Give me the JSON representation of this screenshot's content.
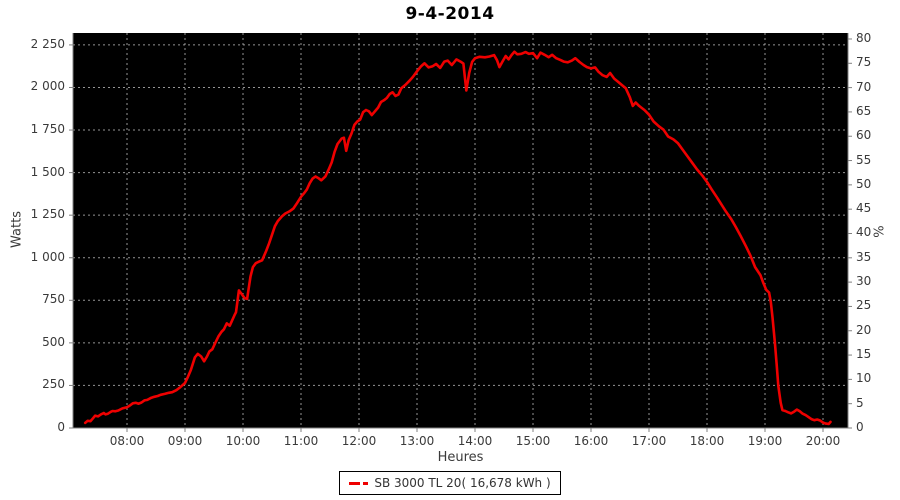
{
  "title": "9-4-2014",
  "legend": {
    "label": "SB 3000 TL 20( 16,678 kWh )",
    "color": "#ee0000"
  },
  "chart_data": {
    "type": "line",
    "title": "9-4-2014",
    "xlabel": "Heures",
    "ylabel_left": "Watts",
    "ylabel_right": "%",
    "grid": true,
    "legend_position": "bottom",
    "plot_background": "#000000",
    "grid_color": "#b0b0b0",
    "axis_color": "#808080",
    "text_color": "#3a3a3a",
    "x_range_hours": [
      7.069,
      20.431
    ],
    "y_range_watts": [
      0,
      2320
    ],
    "right_axis_top_pct": 81.23,
    "x_ticks": [
      {
        "hour": 8,
        "label": "08:00"
      },
      {
        "hour": 9,
        "label": "09:00"
      },
      {
        "hour": 10,
        "label": "10:00"
      },
      {
        "hour": 11,
        "label": "11:00"
      },
      {
        "hour": 12,
        "label": "12:00"
      },
      {
        "hour": 13,
        "label": "13:00"
      },
      {
        "hour": 14,
        "label": "14:00"
      },
      {
        "hour": 15,
        "label": "15:00"
      },
      {
        "hour": 16,
        "label": "16:00"
      },
      {
        "hour": 17,
        "label": "17:00"
      },
      {
        "hour": 18,
        "label": "18:00"
      },
      {
        "hour": 19,
        "label": "19:00"
      },
      {
        "hour": 20,
        "label": "20:00"
      }
    ],
    "y_ticks_left": [
      {
        "value": 0,
        "label": "0"
      },
      {
        "value": 250,
        "label": "250"
      },
      {
        "value": 500,
        "label": "500"
      },
      {
        "value": 750,
        "label": "750"
      },
      {
        "value": 1000,
        "label": "1 000"
      },
      {
        "value": 1250,
        "label": "1 250"
      },
      {
        "value": 1500,
        "label": "1 500"
      },
      {
        "value": 1750,
        "label": "1 750"
      },
      {
        "value": 2000,
        "label": "2 000"
      },
      {
        "value": 2250,
        "label": "2 250"
      }
    ],
    "y_ticks_right": [
      {
        "value": 0,
        "label": "0"
      },
      {
        "value": 5,
        "label": "5"
      },
      {
        "value": 10,
        "label": "10"
      },
      {
        "value": 15,
        "label": "15"
      },
      {
        "value": 20,
        "label": "20"
      },
      {
        "value": 25,
        "label": "25"
      },
      {
        "value": 30,
        "label": "30"
      },
      {
        "value": 35,
        "label": "35"
      },
      {
        "value": 40,
        "label": "40"
      },
      {
        "value": 45,
        "label": "45"
      },
      {
        "value": 50,
        "label": "50"
      },
      {
        "value": 55,
        "label": "55"
      },
      {
        "value": 60,
        "label": "60"
      },
      {
        "value": 65,
        "label": "65"
      },
      {
        "value": 70,
        "label": "70"
      },
      {
        "value": 75,
        "label": "75"
      },
      {
        "value": 80,
        "label": "80"
      }
    ],
    "series": [
      {
        "name": "SB 3000 TL 20( 16,678 kWh )",
        "color": "#ee0000",
        "points": [
          [
            7.28,
            30
          ],
          [
            7.32,
            42
          ],
          [
            7.37,
            40
          ],
          [
            7.42,
            60
          ],
          [
            7.45,
            72
          ],
          [
            7.5,
            68
          ],
          [
            7.55,
            80
          ],
          [
            7.6,
            88
          ],
          [
            7.63,
            80
          ],
          [
            7.67,
            84
          ],
          [
            7.72,
            95
          ],
          [
            7.75,
            100
          ],
          [
            7.8,
            98
          ],
          [
            7.85,
            103
          ],
          [
            7.92,
            115
          ],
          [
            8.0,
            122
          ],
          [
            8.05,
            132
          ],
          [
            8.1,
            145
          ],
          [
            8.15,
            148
          ],
          [
            8.2,
            143
          ],
          [
            8.25,
            150
          ],
          [
            8.3,
            162
          ],
          [
            8.35,
            165
          ],
          [
            8.42,
            178
          ],
          [
            8.47,
            183
          ],
          [
            8.53,
            188
          ],
          [
            8.58,
            195
          ],
          [
            8.65,
            200
          ],
          [
            8.72,
            207
          ],
          [
            8.78,
            210
          ],
          [
            8.85,
            222
          ],
          [
            8.92,
            240
          ],
          [
            9.0,
            265
          ],
          [
            9.05,
            300
          ],
          [
            9.1,
            340
          ],
          [
            9.17,
            415
          ],
          [
            9.22,
            435
          ],
          [
            9.28,
            420
          ],
          [
            9.33,
            392
          ],
          [
            9.38,
            420
          ],
          [
            9.42,
            450
          ],
          [
            9.47,
            462
          ],
          [
            9.53,
            505
          ],
          [
            9.58,
            540
          ],
          [
            9.63,
            565
          ],
          [
            9.67,
            580
          ],
          [
            9.72,
            615
          ],
          [
            9.77,
            600
          ],
          [
            9.8,
            622
          ],
          [
            9.85,
            660
          ],
          [
            9.88,
            680
          ],
          [
            9.93,
            808
          ],
          [
            9.97,
            790
          ],
          [
            10.03,
            762
          ],
          [
            10.07,
            758
          ],
          [
            10.13,
            890
          ],
          [
            10.17,
            945
          ],
          [
            10.22,
            968
          ],
          [
            10.28,
            978
          ],
          [
            10.33,
            985
          ],
          [
            10.4,
            1040
          ],
          [
            10.45,
            1085
          ],
          [
            10.5,
            1135
          ],
          [
            10.55,
            1185
          ],
          [
            10.6,
            1215
          ],
          [
            10.67,
            1243
          ],
          [
            10.73,
            1260
          ],
          [
            10.8,
            1272
          ],
          [
            10.87,
            1290
          ],
          [
            10.93,
            1320
          ],
          [
            11.0,
            1358
          ],
          [
            11.05,
            1378
          ],
          [
            11.1,
            1400
          ],
          [
            11.15,
            1438
          ],
          [
            11.2,
            1465
          ],
          [
            11.25,
            1477
          ],
          [
            11.3,
            1468
          ],
          [
            11.35,
            1455
          ],
          [
            11.42,
            1478
          ],
          [
            11.48,
            1520
          ],
          [
            11.53,
            1560
          ],
          [
            11.58,
            1622
          ],
          [
            11.63,
            1668
          ],
          [
            11.7,
            1700
          ],
          [
            11.74,
            1705
          ],
          [
            11.78,
            1628
          ],
          [
            11.82,
            1690
          ],
          [
            11.87,
            1730
          ],
          [
            11.92,
            1780
          ],
          [
            11.97,
            1800
          ],
          [
            12.02,
            1812
          ],
          [
            12.07,
            1855
          ],
          [
            12.12,
            1868
          ],
          [
            12.17,
            1860
          ],
          [
            12.22,
            1838
          ],
          [
            12.28,
            1862
          ],
          [
            12.33,
            1882
          ],
          [
            12.38,
            1915
          ],
          [
            12.43,
            1925
          ],
          [
            12.48,
            1938
          ],
          [
            12.53,
            1962
          ],
          [
            12.58,
            1972
          ],
          [
            12.63,
            1950
          ],
          [
            12.68,
            1958
          ],
          [
            12.73,
            1995
          ],
          [
            12.8,
            2015
          ],
          [
            12.87,
            2040
          ],
          [
            12.93,
            2062
          ],
          [
            13.0,
            2095
          ],
          [
            13.07,
            2125
          ],
          [
            13.13,
            2142
          ],
          [
            13.2,
            2118
          ],
          [
            13.27,
            2125
          ],
          [
            13.33,
            2138
          ],
          [
            13.4,
            2115
          ],
          [
            13.47,
            2152
          ],
          [
            13.53,
            2158
          ],
          [
            13.6,
            2132
          ],
          [
            13.68,
            2165
          ],
          [
            13.75,
            2152
          ],
          [
            13.8,
            2140
          ],
          [
            13.85,
            1982
          ],
          [
            13.9,
            2085
          ],
          [
            13.95,
            2150
          ],
          [
            14.0,
            2172
          ],
          [
            14.08,
            2180
          ],
          [
            14.17,
            2177
          ],
          [
            14.25,
            2182
          ],
          [
            14.33,
            2190
          ],
          [
            14.38,
            2160
          ],
          [
            14.42,
            2120
          ],
          [
            14.47,
            2150
          ],
          [
            14.53,
            2185
          ],
          [
            14.58,
            2165
          ],
          [
            14.63,
            2190
          ],
          [
            14.68,
            2210
          ],
          [
            14.73,
            2195
          ],
          [
            14.8,
            2198
          ],
          [
            14.87,
            2208
          ],
          [
            14.93,
            2198
          ],
          [
            15.0,
            2202
          ],
          [
            15.07,
            2172
          ],
          [
            15.13,
            2205
          ],
          [
            15.2,
            2192
          ],
          [
            15.27,
            2178
          ],
          [
            15.33,
            2192
          ],
          [
            15.4,
            2172
          ],
          [
            15.47,
            2162
          ],
          [
            15.53,
            2152
          ],
          [
            15.6,
            2148
          ],
          [
            15.67,
            2158
          ],
          [
            15.73,
            2172
          ],
          [
            15.8,
            2150
          ],
          [
            15.87,
            2132
          ],
          [
            15.93,
            2120
          ],
          [
            16.0,
            2112
          ],
          [
            16.07,
            2118
          ],
          [
            16.13,
            2092
          ],
          [
            16.2,
            2072
          ],
          [
            16.27,
            2062
          ],
          [
            16.33,
            2085
          ],
          [
            16.4,
            2052
          ],
          [
            16.47,
            2032
          ],
          [
            16.53,
            2015
          ],
          [
            16.6,
            1995
          ],
          [
            16.67,
            1942
          ],
          [
            16.72,
            1892
          ],
          [
            16.77,
            1912
          ],
          [
            16.83,
            1892
          ],
          [
            16.92,
            1868
          ],
          [
            17.0,
            1840
          ],
          [
            17.08,
            1800
          ],
          [
            17.17,
            1772
          ],
          [
            17.25,
            1752
          ],
          [
            17.33,
            1712
          ],
          [
            17.42,
            1695
          ],
          [
            17.5,
            1672
          ],
          [
            17.58,
            1635
          ],
          [
            17.67,
            1592
          ],
          [
            17.75,
            1555
          ],
          [
            17.83,
            1518
          ],
          [
            17.92,
            1482
          ],
          [
            18.0,
            1445
          ],
          [
            18.08,
            1402
          ],
          [
            18.17,
            1355
          ],
          [
            18.25,
            1312
          ],
          [
            18.33,
            1270
          ],
          [
            18.42,
            1225
          ],
          [
            18.5,
            1178
          ],
          [
            18.58,
            1128
          ],
          [
            18.67,
            1068
          ],
          [
            18.75,
            1012
          ],
          [
            18.83,
            945
          ],
          [
            18.92,
            898
          ],
          [
            18.97,
            852
          ],
          [
            19.02,
            812
          ],
          [
            19.07,
            795
          ],
          [
            19.1,
            740
          ],
          [
            19.13,
            650
          ],
          [
            19.17,
            500
          ],
          [
            19.2,
            378
          ],
          [
            19.23,
            248
          ],
          [
            19.27,
            148
          ],
          [
            19.3,
            105
          ],
          [
            19.35,
            100
          ],
          [
            19.4,
            92
          ],
          [
            19.45,
            86
          ],
          [
            19.5,
            96
          ],
          [
            19.55,
            108
          ],
          [
            19.6,
            98
          ],
          [
            19.65,
            84
          ],
          [
            19.7,
            76
          ],
          [
            19.75,
            64
          ],
          [
            19.8,
            52
          ],
          [
            19.85,
            46
          ],
          [
            19.9,
            50
          ],
          [
            19.95,
            44
          ],
          [
            20.0,
            32
          ],
          [
            20.05,
            26
          ],
          [
            20.1,
            24
          ],
          [
            20.13,
            36
          ]
        ]
      }
    ]
  }
}
